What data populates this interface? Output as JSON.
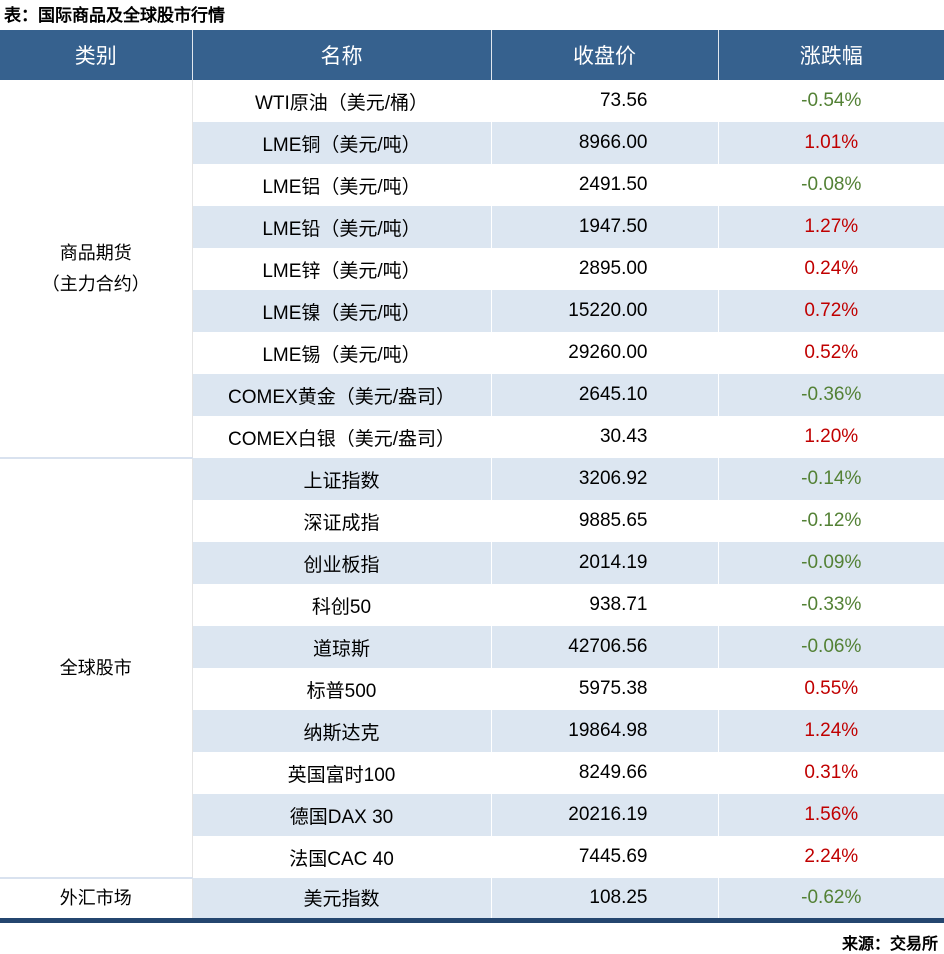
{
  "title": "表：国际商品及全球股市行情",
  "source": "来源：交易所",
  "colors": {
    "header_bg": "#36618E",
    "header_text": "#FFFFFF",
    "row_alt_bg": "#DCE6F1",
    "rise_red": "#C00000",
    "fall_green": "#538135",
    "bottom_border_navy": "#24466F",
    "section_divider": "#D9E2EF"
  },
  "chart_data": {
    "type": "table",
    "title": "表：国际商品及全球股市行情",
    "columns": [
      "类别",
      "名称",
      "收盘价",
      "涨跌幅"
    ],
    "sections": [
      {
        "category": "商品期货\n（主力合约）",
        "rows": [
          {
            "name": "WTI原油（美元/桶）",
            "close": "73.56",
            "change": "-0.54%"
          },
          {
            "name": "LME铜（美元/吨）",
            "close": "8966.00",
            "change": "1.01%"
          },
          {
            "name": "LME铝（美元/吨）",
            "close": "2491.50",
            "change": "-0.08%"
          },
          {
            "name": "LME铅（美元/吨）",
            "close": "1947.50",
            "change": "1.27%"
          },
          {
            "name": "LME锌（美元/吨）",
            "close": "2895.00",
            "change": "0.24%"
          },
          {
            "name": "LME镍（美元/吨）",
            "close": "15220.00",
            "change": "0.72%"
          },
          {
            "name": "LME锡（美元/吨）",
            "close": "29260.00",
            "change": "0.52%"
          },
          {
            "name": "COMEX黄金（美元/盎司）",
            "close": "2645.10",
            "change": "-0.36%"
          },
          {
            "name": "COMEX白银（美元/盎司）",
            "close": "30.43",
            "change": "1.20%"
          }
        ]
      },
      {
        "category": "全球股市",
        "rows": [
          {
            "name": "上证指数",
            "close": "3206.92",
            "change": "-0.14%"
          },
          {
            "name": "深证成指",
            "close": "9885.65",
            "change": "-0.12%"
          },
          {
            "name": "创业板指",
            "close": "2014.19",
            "change": "-0.09%"
          },
          {
            "name": "科创50",
            "close": "938.71",
            "change": "-0.33%"
          },
          {
            "name": "道琼斯",
            "close": "42706.56",
            "change": "-0.06%"
          },
          {
            "name": "标普500",
            "close": "5975.38",
            "change": "0.55%"
          },
          {
            "name": "纳斯达克",
            "close": "19864.98",
            "change": "1.24%"
          },
          {
            "name": "英国富时100",
            "close": "8249.66",
            "change": "0.31%"
          },
          {
            "name": "德国DAX 30",
            "close": "20216.19",
            "change": "1.56%"
          },
          {
            "name": "法国CAC 40",
            "close": "7445.69",
            "change": "2.24%"
          }
        ]
      },
      {
        "category": "外汇市场",
        "rows": [
          {
            "name": "美元指数",
            "close": "108.25",
            "change": "-0.62%"
          }
        ]
      }
    ],
    "source": "来源：交易所",
    "layout": {
      "row_striping": "alternating white / light blue",
      "positive_change_color": "red",
      "negative_change_color": "green",
      "legend": "none",
      "grid": "none"
    }
  }
}
